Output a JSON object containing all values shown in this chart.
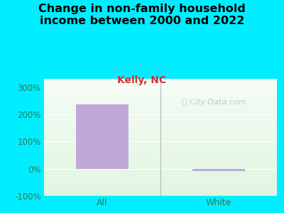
{
  "title": "Change in non-family household\nincome between 2000 and 2022",
  "subtitle": "Kelly, NC",
  "categories": [
    "All",
    "White"
  ],
  "values": [
    235,
    -10
  ],
  "bar_color": "#c0a8d8",
  "ylim": [
    -100,
    330
  ],
  "yticks": [
    -100,
    0,
    100,
    200,
    300
  ],
  "ytick_labels": [
    "-100%",
    "0%",
    "100%",
    "200%",
    "300%"
  ],
  "outer_bg": "#00eeff",
  "title_color": "#000000",
  "subtitle_color": "#cc3333",
  "axis_label_color": "#337755",
  "watermark": "City-Data.com",
  "watermark_color": "#aabbbb",
  "bar_width": 0.45,
  "title_fontsize": 11.5,
  "subtitle_fontsize": 10
}
